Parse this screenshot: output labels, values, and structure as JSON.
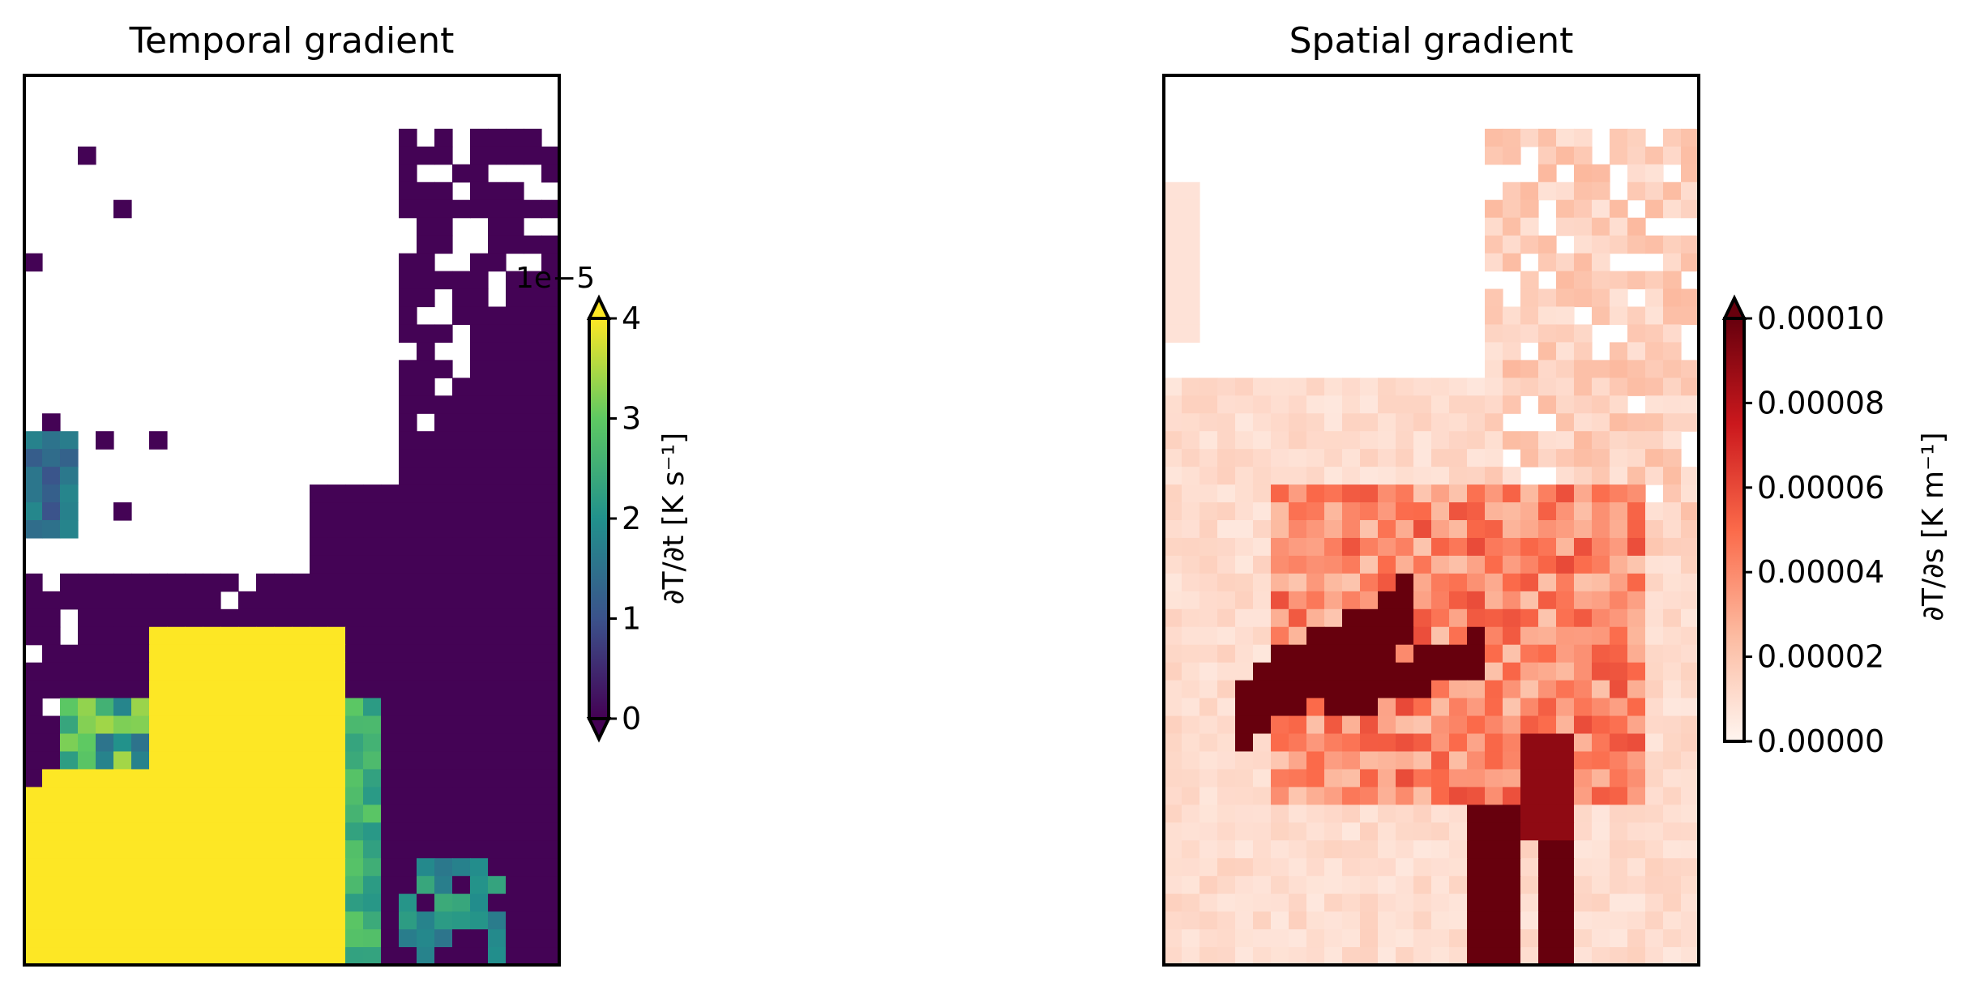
{
  "figure": {
    "panels": [
      {
        "title": "Temporal gradient"
      },
      {
        "title": "Spatial gradient"
      }
    ]
  },
  "chart_data": [
    {
      "type": "heatmap",
      "title": "Temporal gradient",
      "colormap": "viridis",
      "grid_shape": [
        50,
        30
      ],
      "color_range": [
        0,
        4
      ],
      "colorbar": {
        "label": "∂T/∂t [K s⁻¹]",
        "scale_label": "1e−5",
        "ticks": [
          0,
          1,
          2,
          3,
          4
        ],
        "tick_labels": [
          "0",
          "1",
          "2",
          "3",
          "4"
        ],
        "extend": "both"
      },
      "value_summary": {
        "yellow_region_value": 4,
        "background_value": 0,
        "mixed_region_values": [
          1,
          3
        ]
      }
    },
    {
      "type": "heatmap",
      "title": "Spatial gradient",
      "colormap": "Reds",
      "grid_shape": [
        50,
        30
      ],
      "color_range": [
        0,
        0.0001
      ],
      "colorbar": {
        "label": "∂T/∂s [K m⁻¹]",
        "ticks": [
          0,
          2e-05,
          4e-05,
          6e-05,
          8e-05,
          0.0001
        ],
        "tick_labels": [
          "0.00000",
          "0.00002",
          "0.00004",
          "0.00006",
          "0.00008",
          "0.00010"
        ],
        "extend": "max"
      },
      "value_summary": {
        "peak_value": 0.0001,
        "typical_value": 1e-05
      }
    }
  ]
}
